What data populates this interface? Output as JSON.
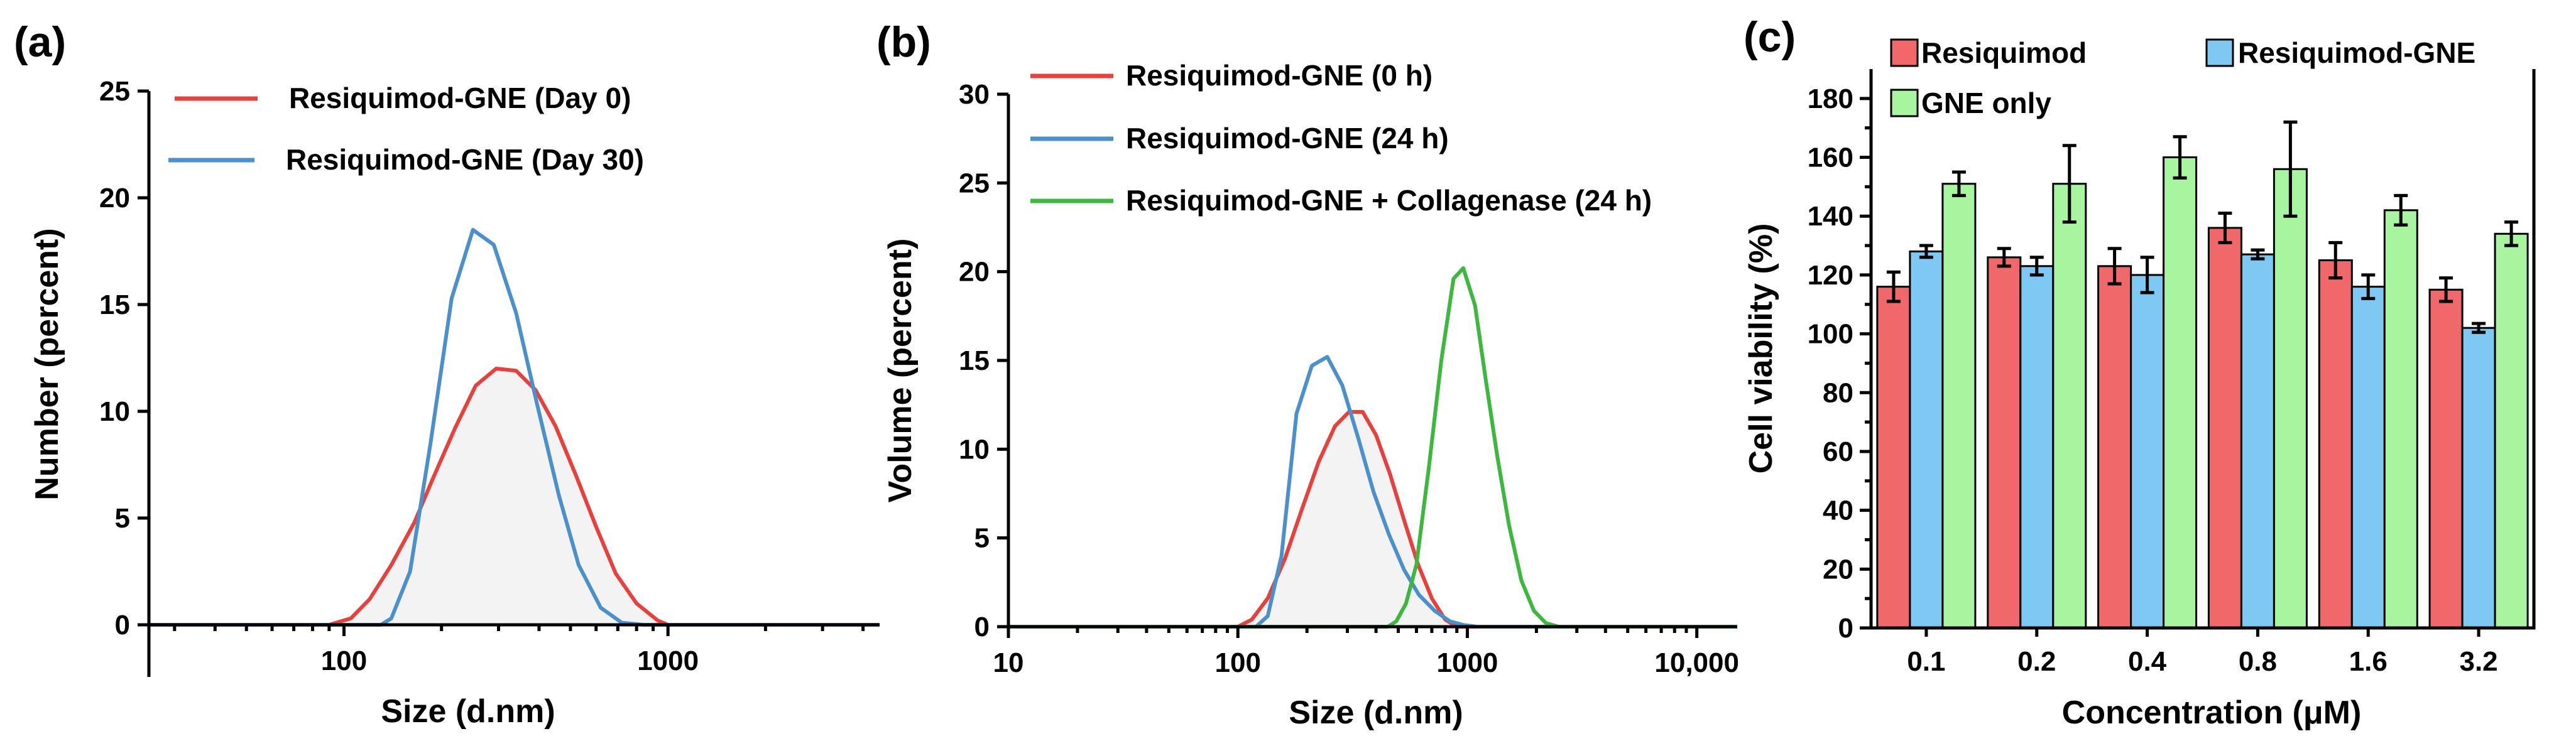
{
  "chart_data": [
    {
      "panel_label": "(a)",
      "type": "line",
      "x_scale": "log",
      "xlim": [
        25,
        4500
      ],
      "ylim": [
        0,
        25
      ],
      "xlabel": "Size (d.nm)",
      "ylabel": "Number (percent)",
      "x_ticks": [
        {
          "value": 100,
          "label": "100"
        },
        {
          "value": 1000,
          "label": "1000"
        }
      ],
      "y_ticks": [
        {
          "value": 0,
          "label": "0"
        },
        {
          "value": 5,
          "label": "5"
        },
        {
          "value": 10,
          "label": "10"
        },
        {
          "value": 15,
          "label": "15"
        },
        {
          "value": 20,
          "label": "20"
        },
        {
          "value": 25,
          "label": "25"
        }
      ],
      "fill_series": 0,
      "legend_position": "top-center",
      "series": [
        {
          "name": "Resiquimod-GNE (Day 0)",
          "color": "#e8413c",
          "x": [
            25,
            90,
            105,
            120,
            140,
            165,
            190,
            220,
            255,
            295,
            340,
            390,
            450,
            520,
            600,
            690,
            800,
            930,
            1000,
            4500
          ],
          "y": [
            0,
            0,
            0.3,
            1.2,
            2.8,
            4.8,
            7,
            9.2,
            11.2,
            12,
            11.9,
            11,
            9.3,
            7,
            4.6,
            2.4,
            1,
            0.2,
            0,
            0
          ]
        },
        {
          "name": "Resiquimod-GNE (Day 30)",
          "color": "#4a90cc",
          "x": [
            25,
            130,
            140,
            160,
            185,
            215,
            250,
            290,
            340,
            395,
            460,
            530,
            620,
            720,
            840,
            900,
            4500
          ],
          "y": [
            0,
            0,
            0.3,
            2.5,
            8.5,
            15.3,
            18.5,
            17.8,
            14.6,
            10.3,
            6.1,
            2.8,
            0.8,
            0.1,
            0,
            0,
            0
          ]
        }
      ]
    },
    {
      "panel_label": "(b)",
      "type": "line",
      "x_scale": "log",
      "xlim": [
        10,
        15000
      ],
      "ylim": [
        0,
        30
      ],
      "xlabel": "Size (d.nm)",
      "ylabel": "Volume (percent)",
      "x_ticks": [
        {
          "value": 10,
          "label": "10"
        },
        {
          "value": 100,
          "label": "100"
        },
        {
          "value": 1000,
          "label": "1000"
        },
        {
          "value": 10000,
          "label": "10,000"
        }
      ],
      "y_ticks": [
        {
          "value": 0,
          "label": "0"
        },
        {
          "value": 5,
          "label": "5"
        },
        {
          "value": 10,
          "label": "10"
        },
        {
          "value": 15,
          "label": "15"
        },
        {
          "value": 20,
          "label": "20"
        },
        {
          "value": 25,
          "label": "25"
        },
        {
          "value": 30,
          "label": "30"
        }
      ],
      "fill_series": 0,
      "legend_position": "top-left",
      "series": [
        {
          "name": "Resiquimod-GNE (0 h)",
          "color": "#e8413c",
          "x": [
            10,
            100,
            115,
            135,
            160,
            190,
            225,
            265,
            305,
            350,
            400,
            460,
            530,
            610,
            700,
            800,
            900,
            15000
          ],
          "y": [
            0,
            0,
            0.4,
            1.6,
            3.8,
            6.6,
            9.3,
            11.3,
            12.1,
            12.1,
            10.8,
            8.6,
            6,
            3.5,
            1.6,
            0.4,
            0,
            0
          ]
        },
        {
          "name": "Resiquimod-GNE (24 h)",
          "color": "#4a90cc",
          "x": [
            10,
            120,
            135,
            155,
            180,
            210,
            245,
            285,
            335,
            390,
            455,
            530,
            615,
            720,
            840,
            960,
            1100,
            15000
          ],
          "y": [
            0,
            0,
            0.6,
            4,
            12,
            14.7,
            15.2,
            13.6,
            10.6,
            7.6,
            5.2,
            3.2,
            1.8,
            0.9,
            0.3,
            0.1,
            0,
            0
          ]
        },
        {
          "name": "Resiquimod-GNE + Collagenase (24 h)",
          "color": "#3cb83c",
          "x": [
            10,
            450,
            490,
            540,
            600,
            680,
            770,
            870,
            960,
            1080,
            1200,
            1350,
            1520,
            1720,
            1950,
            2200,
            2500,
            15000
          ],
          "y": [
            0,
            0,
            0.3,
            1.3,
            3.5,
            9,
            15,
            19.6,
            20.2,
            18.1,
            14,
            9.6,
            5.7,
            2.6,
            0.9,
            0.2,
            0,
            0
          ]
        }
      ]
    },
    {
      "panel_label": "(c)",
      "type": "bar",
      "categories": [
        "0.1",
        "0.2",
        "0.4",
        "0.8",
        "1.6",
        "3.2"
      ],
      "xlabel": "Concentration (μM)",
      "ylabel": "Cell viability (%)",
      "ylim": [
        0,
        190
      ],
      "y_ticks": [
        {
          "value": 0,
          "label": "0"
        },
        {
          "value": 20,
          "label": "20"
        },
        {
          "value": 40,
          "label": "40"
        },
        {
          "value": 60,
          "label": "60"
        },
        {
          "value": 80,
          "label": "80"
        },
        {
          "value": 100,
          "label": "100"
        },
        {
          "value": 120,
          "label": "120"
        },
        {
          "value": 140,
          "label": "140"
        },
        {
          "value": 160,
          "label": "160"
        },
        {
          "value": 180,
          "label": "180"
        }
      ],
      "legend_position": "top",
      "series": [
        {
          "name": "Resiquimod",
          "color": "#f0686a",
          "values": [
            116,
            126,
            123,
            136,
            125,
            115
          ],
          "errors": [
            5,
            3,
            6,
            5,
            6,
            4
          ]
        },
        {
          "name": "Resiquimod-GNE",
          "color": "#7ec8f4",
          "values": [
            128,
            123,
            120,
            127,
            116,
            102
          ],
          "errors": [
            2,
            3,
            6,
            1.5,
            4,
            1.5
          ]
        },
        {
          "name": "GNE only",
          "color": "#a8f5a0",
          "values": [
            151,
            151,
            160,
            156,
            142,
            134
          ],
          "errors": [
            4,
            13,
            7,
            16,
            5,
            4
          ]
        }
      ]
    }
  ]
}
